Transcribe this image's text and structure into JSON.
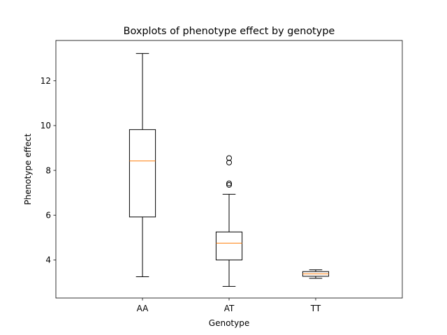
{
  "chart_data": {
    "type": "boxplot",
    "title": "Boxplots of phenotype effect by genotype",
    "xlabel": "Genotype",
    "ylabel": "Phenotype effect",
    "categories": [
      "AA",
      "AT",
      "TT"
    ],
    "ylim": [
      2.3,
      13.8
    ],
    "yticks": [
      4,
      6,
      8,
      10,
      12
    ],
    "grid": false,
    "boxes": [
      {
        "category": "AA",
        "whisker_low": 3.25,
        "q1": 5.92,
        "median": 8.42,
        "q3": 9.82,
        "whisker_high": 13.22,
        "outliers": []
      },
      {
        "category": "AT",
        "whisker_low": 2.82,
        "q1": 4.0,
        "median": 4.75,
        "q3": 5.25,
        "whisker_high": 6.93,
        "outliers": [
          7.35,
          7.42,
          8.35,
          8.55
        ]
      },
      {
        "category": "TT",
        "whisker_low": 3.18,
        "q1": 3.27,
        "median": 3.38,
        "q3": 3.48,
        "whisker_high": 3.56,
        "outliers": []
      }
    ],
    "colors": {
      "box": "#000000",
      "median": "#ff7f0e",
      "frame": "#000000"
    }
  }
}
